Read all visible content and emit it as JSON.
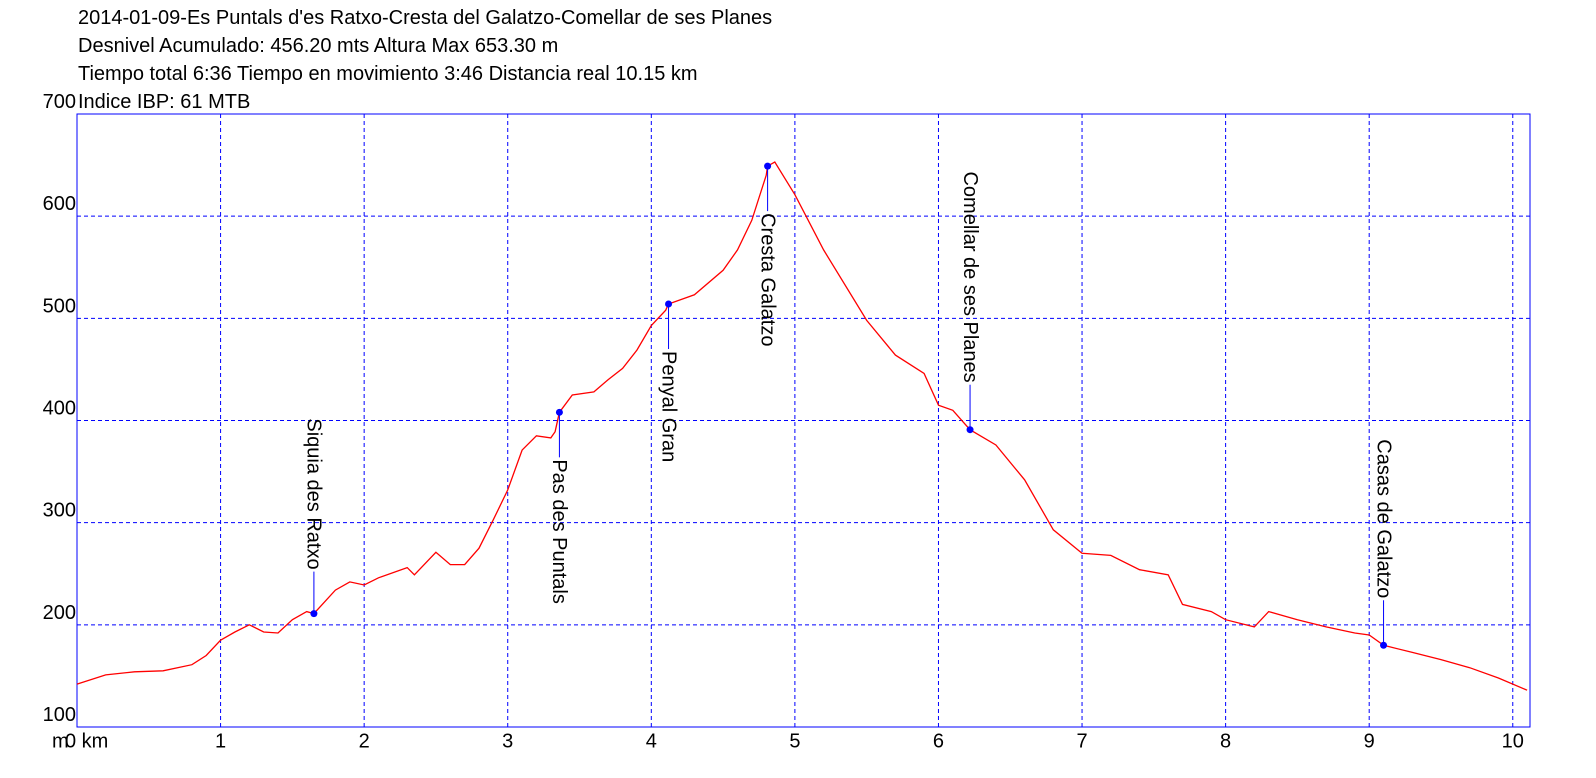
{
  "chart_data": {
    "type": "line",
    "title_lines": [
      "2014-01-09-Es Puntals d'es Ratxo-Cresta del Galatzo-Comellar de ses Planes",
      "Desnivel Acumulado: 456.20 mts  Altura Max 653.30 m",
      "Tiempo total 6:36 Tiempo en movimiento 3:46 Distancia real 10.15 km",
      "Indice IBP: 61 MTB"
    ],
    "y_label": "m",
    "xlim": [
      0,
      10.12
    ],
    "ylim": [
      100,
      700
    ],
    "xticks": [
      {
        "value": 0,
        "label": "0 km"
      },
      1,
      2,
      3,
      4,
      5,
      6,
      7,
      8,
      9,
      10
    ],
    "yticks": [
      100,
      200,
      300,
      400,
      500,
      600,
      700
    ],
    "grid": true,
    "series": [
      {
        "color": "#ff0000",
        "x": [
          0,
          0.2,
          0.4,
          0.6,
          0.8,
          0.9,
          1.0,
          1.1,
          1.2,
          1.3,
          1.4,
          1.5,
          1.6,
          1.65,
          1.8,
          1.9,
          2.0,
          2.1,
          2.3,
          2.35,
          2.5,
          2.6,
          2.7,
          2.8,
          2.9,
          3.0,
          3.1,
          3.2,
          3.3,
          3.33,
          3.36,
          3.45,
          3.6,
          3.7,
          3.8,
          3.9,
          4.0,
          4.1,
          4.12,
          4.3,
          4.5,
          4.6,
          4.7,
          4.8,
          4.81,
          4.86,
          5.0,
          5.2,
          5.5,
          5.7,
          5.9,
          6.0,
          6.1,
          6.22,
          6.4,
          6.6,
          6.8,
          7.0,
          7.2,
          7.4,
          7.6,
          7.7,
          7.9,
          8.0,
          8.2,
          8.3,
          8.5,
          8.7,
          8.9,
          9.0,
          9.1,
          9.3,
          9.5,
          9.7,
          9.9,
          10.1
        ],
        "values": [
          142,
          151,
          154,
          155,
          161,
          170,
          185,
          193,
          200,
          193,
          192,
          205,
          213,
          211,
          234,
          242,
          239,
          246,
          256,
          249,
          271,
          259,
          259,
          275,
          303,
          332,
          371,
          385,
          383,
          389,
          408,
          425,
          428,
          440,
          451,
          469,
          493,
          508,
          514,
          523,
          547,
          567,
          596,
          640,
          649,
          653,
          621,
          567,
          498,
          464,
          446,
          415,
          410,
          391,
          376,
          342,
          293,
          270,
          268,
          254,
          249,
          220,
          213,
          205,
          198,
          213,
          205,
          198,
          192,
          190,
          180,
          173,
          166,
          158,
          148,
          136
        ]
      }
    ],
    "waypoints": [
      {
        "label": "Siquia des Ratxo",
        "x": 1.65,
        "y": 211
      },
      {
        "label": "Pas des Puntals",
        "x": 3.36,
        "y": 408
      },
      {
        "label": "Penyal Gran",
        "x": 4.12,
        "y": 514
      },
      {
        "label": "Cresta Galatzo",
        "x": 4.81,
        "y": 649
      },
      {
        "label": "Comellar de ses Planes",
        "x": 6.22,
        "y": 391
      },
      {
        "label": "Casas de Galatzo",
        "x": 9.1,
        "y": 180
      }
    ]
  }
}
